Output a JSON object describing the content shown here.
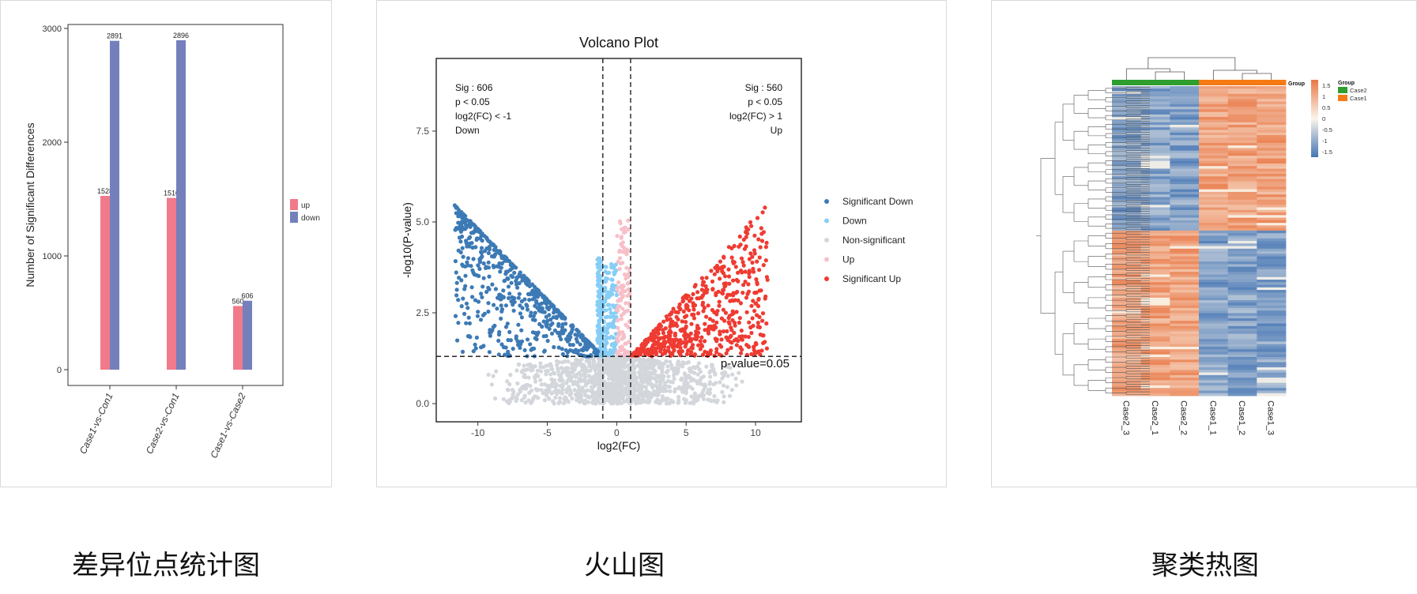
{
  "captions": {
    "bar": "差异位点统计图",
    "volcano": "火山图",
    "heatmap": "聚类热图"
  },
  "colors": {
    "up": "#f07a8a",
    "down": "#7480bb",
    "sig_down": "#3d7ab5",
    "down_light": "#87cef6",
    "nonsig": "#d3d6db",
    "up_light": "#f7bfc8",
    "sig_up": "#ef3b32",
    "case2": "#2e9e2e",
    "case1": "#f57a14"
  },
  "chart_data": [
    {
      "type": "bar",
      "categories": [
        "Case1-vs-Con1",
        "Case2-vs-Con1",
        "Case1-vs-Case2"
      ],
      "series": [
        {
          "name": "up",
          "values": [
            1528,
            1510,
            560
          ]
        },
        {
          "name": "down",
          "values": [
            2891,
            2896,
            606
          ]
        }
      ],
      "ylabel": "Number of Significant Differences",
      "ylim": [
        0,
        3000
      ],
      "yticks": [
        0,
        1000,
        2000,
        3000
      ],
      "legend": "right"
    },
    {
      "type": "scatter",
      "title": "Volcano Plot",
      "xlabel": "log2(FC)",
      "ylabel": "-log10(P-value)",
      "xlim": [
        -13,
        13.3
      ],
      "ylim": [
        -0.5,
        9.5
      ],
      "xticks": [
        -10,
        -5,
        0,
        5,
        10
      ],
      "yticks": [
        0.0,
        2.5,
        5.0,
        7.5
      ],
      "ytick_labels": [
        "0.0",
        "2.5",
        "5.0",
        "7.5"
      ],
      "thresholds": {
        "x": [
          -1,
          1
        ],
        "y": 1.3,
        "label": "p-value=0.05"
      },
      "annotations": {
        "left": [
          "Sig : 606",
          "p < 0.05",
          "log2(FC) < -1",
          "Down"
        ],
        "right": [
          "Sig : 560",
          "p < 0.05",
          "log2(FC) > 1",
          "Up"
        ]
      },
      "series": [
        {
          "name": "Significant Down",
          "count": 606
        },
        {
          "name": "Down"
        },
        {
          "name": "Non-significant"
        },
        {
          "name": "Up"
        },
        {
          "name": "Significant Up",
          "count": 560
        }
      ],
      "legend": "right"
    },
    {
      "type": "heatmap",
      "columns": [
        "Case2_3",
        "Case2_1",
        "Case2_2",
        "Case1_1",
        "Case1_2",
        "Case1_3"
      ],
      "groups": [
        "Case2",
        "Case2",
        "Case2",
        "Case1",
        "Case1",
        "Case1"
      ],
      "group_legend_title": "Group",
      "group_legend": [
        "Case2",
        "Case1"
      ],
      "annotation_label": "Group",
      "color_scale_ticks": [
        "1.5",
        "1",
        "0.5",
        "0",
        "-0.5",
        "-1",
        "-1.5"
      ],
      "color_range": [
        -1.5,
        1.5
      ],
      "blocks": [
        {
          "rows_fraction": 0.47,
          "case2_sign": -1,
          "case1_sign": 1
        },
        {
          "rows_fraction": 0.53,
          "case2_sign": 1,
          "case1_sign": -1
        }
      ]
    }
  ]
}
